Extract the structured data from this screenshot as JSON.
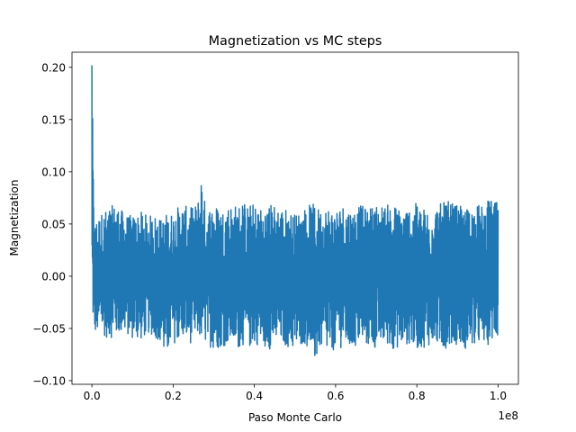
{
  "chart_data": {
    "type": "line",
    "title": "Magnetization vs MC steps",
    "xlabel": "Paso Monte Carlo",
    "ylabel": "Magnetization",
    "x_offset_label": "1e8",
    "xlim": [
      -4900000,
      105000000
    ],
    "ylim": [
      -0.1035,
      0.2145
    ],
    "x_ticks": [
      0,
      20000000,
      40000000,
      60000000,
      80000000,
      100000000
    ],
    "x_tick_labels": [
      "0.0",
      "0.2",
      "0.4",
      "0.6",
      "0.8",
      "1.0"
    ],
    "y_ticks": [
      -0.1,
      -0.05,
      0.0,
      0.05,
      0.1,
      0.15,
      0.2
    ],
    "y_tick_labels": [
      "−0.10",
      "−0.05",
      "0.00",
      "0.05",
      "0.10",
      "0.15",
      "0.20"
    ],
    "grid": false,
    "series": [
      {
        "color": "#1f77b4",
        "envelope_x": [
          0,
          500000,
          1000000,
          2000000,
          4000000,
          6000000,
          8000000,
          10000000,
          12000000,
          14000000,
          16000000,
          17000000,
          18000000,
          20000000,
          22000000,
          24000000,
          26000000,
          27000000,
          28000000,
          30000000,
          32000000,
          34000000,
          36000000,
          37000000,
          38000000,
          40000000,
          42000000,
          44000000,
          46000000,
          48000000,
          50000000,
          52000000,
          54000000,
          55000000,
          56000000,
          58000000,
          60000000,
          62000000,
          64000000,
          66000000,
          68000000,
          70000000,
          72000000,
          74000000,
          76000000,
          78000000,
          80000000,
          82000000,
          84000000,
          86000000,
          88000000,
          90000000,
          92000000,
          94000000,
          96000000,
          98000000,
          100000000
        ],
        "envelope_max": [
          0.202,
          0.05,
          0.055,
          0.06,
          0.065,
          0.07,
          0.06,
          0.058,
          0.062,
          0.058,
          0.06,
          0.055,
          0.06,
          0.062,
          0.07,
          0.065,
          0.07,
          0.1,
          0.065,
          0.07,
          0.065,
          0.07,
          0.068,
          0.075,
          0.068,
          0.07,
          0.065,
          0.07,
          0.068,
          0.065,
          0.06,
          0.065,
          0.07,
          0.068,
          0.065,
          0.068,
          0.065,
          0.07,
          0.065,
          0.068,
          0.065,
          0.07,
          0.068,
          0.07,
          0.065,
          0.068,
          0.07,
          0.065,
          0.068,
          0.07,
          0.072,
          0.068,
          0.065,
          0.07,
          0.068,
          0.074,
          0.07
        ],
        "envelope_min": [
          -0.035,
          -0.055,
          -0.057,
          -0.055,
          -0.06,
          -0.058,
          -0.055,
          -0.06,
          -0.062,
          -0.055,
          -0.06,
          -0.065,
          -0.08,
          -0.065,
          -0.06,
          -0.065,
          -0.06,
          -0.062,
          -0.065,
          -0.07,
          -0.068,
          -0.065,
          -0.07,
          -0.065,
          -0.072,
          -0.065,
          -0.068,
          -0.07,
          -0.065,
          -0.068,
          -0.072,
          -0.065,
          -0.07,
          -0.086,
          -0.07,
          -0.075,
          -0.07,
          -0.068,
          -0.072,
          -0.065,
          -0.068,
          -0.07,
          -0.065,
          -0.07,
          -0.068,
          -0.065,
          -0.07,
          -0.068,
          -0.065,
          -0.07,
          -0.068,
          -0.065,
          -0.07,
          -0.068,
          -0.065,
          -0.066,
          -0.06
        ]
      }
    ]
  }
}
